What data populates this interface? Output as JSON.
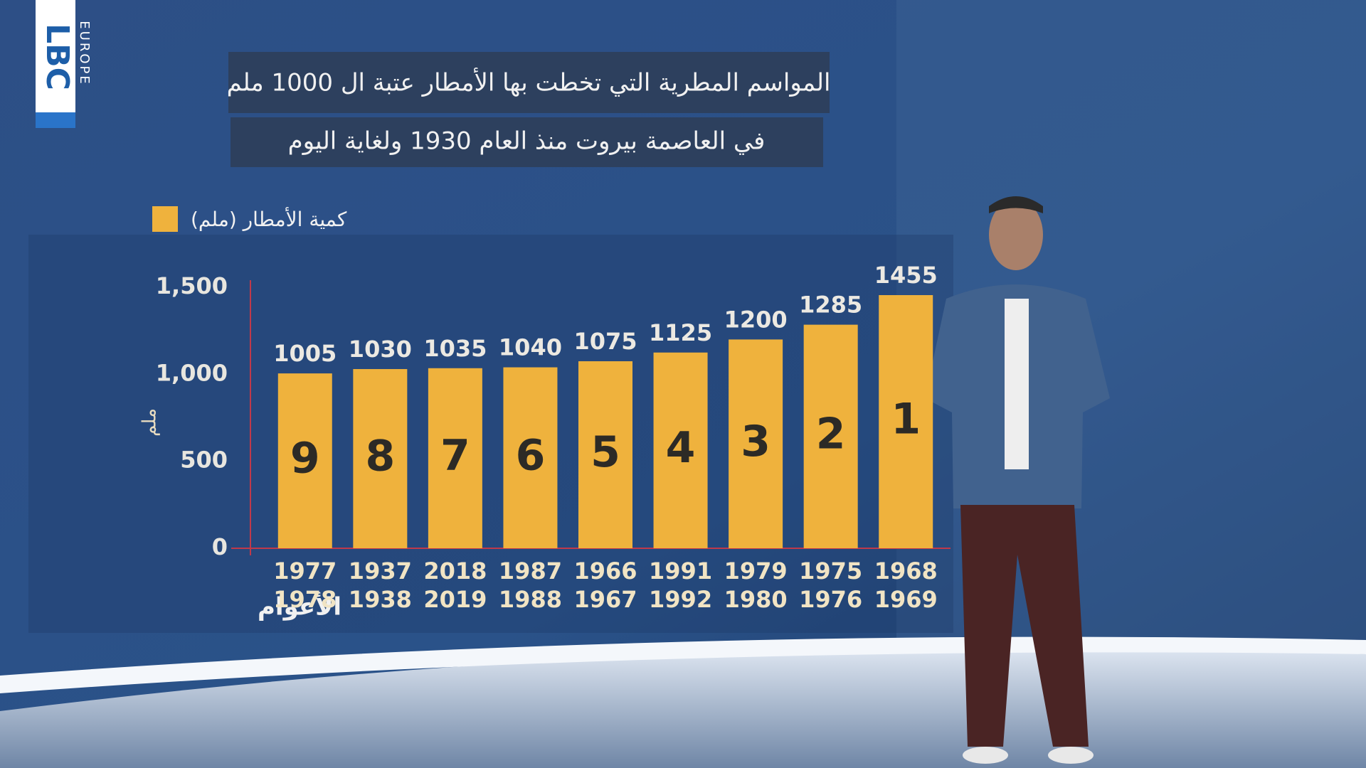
{
  "logo": {
    "main": "LBC",
    "sub": "EUROPE"
  },
  "chart_data": {
    "type": "bar",
    "title": "المواسم المطرية التي تخطت بها الأمطار عتبة ال 1000 ملم",
    "subtitle": "في العاصمة بيروت منذ العام 1930 ولغاية اليوم",
    "legend_label": "كمية الأمطار (ملم)",
    "y_label": "ملم",
    "x_label": "الأعوام",
    "categories": [
      [
        "1977",
        "1978"
      ],
      [
        "1937",
        "1938"
      ],
      [
        "2018",
        "2019"
      ],
      [
        "1987",
        "1988"
      ],
      [
        "1966",
        "1967"
      ],
      [
        "1991",
        "1992"
      ],
      [
        "1979",
        "1980"
      ],
      [
        "1975",
        "1976"
      ],
      [
        "1968",
        "1969"
      ]
    ],
    "values": [
      1005,
      1030,
      1035,
      1040,
      1075,
      1125,
      1200,
      1285,
      1455
    ],
    "ranks": [
      9,
      8,
      7,
      6,
      5,
      4,
      3,
      2,
      1
    ],
    "color": "#efb23d",
    "ylim": [
      0,
      1500
    ],
    "yticks": [
      0,
      500,
      {
        "value": 1000,
        "label": "1,000"
      },
      {
        "value": 1500,
        "label": "1,500"
      }
    ],
    "grid": false
  }
}
